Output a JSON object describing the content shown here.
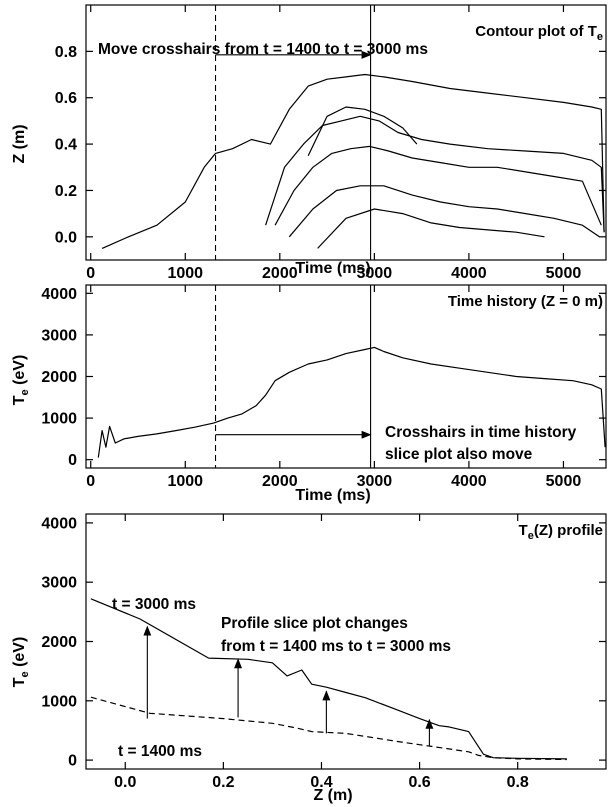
{
  "chart_data": [
    {
      "type": "line",
      "title": "Contour plot of T",
      "title_sub": "e",
      "xlabel": "Time (ms)",
      "ylabel": "Z (m)",
      "xlim": [
        -50,
        5450
      ],
      "ylim": [
        -0.1,
        1.0
      ],
      "x_ticks": [
        {
          "value": 0,
          "label": "0"
        },
        {
          "value": 1000,
          "label": "1000"
        },
        {
          "value": 2000,
          "label": "2000"
        },
        {
          "value": 3000,
          "label": "3000"
        },
        {
          "value": 4000,
          "label": "4000"
        },
        {
          "value": 5000,
          "label": "5000"
        }
      ],
      "y_ticks": [
        {
          "value": 0.0,
          "label": "0.0"
        },
        {
          "value": 0.2,
          "label": "0.2"
        },
        {
          "value": 0.4,
          "label": "0.4"
        },
        {
          "value": 0.6,
          "label": "0.6"
        },
        {
          "value": 0.8,
          "label": "0.8"
        }
      ],
      "grid": false,
      "series": [
        {
          "x": [
            120,
            400,
            700,
            1000,
            1200,
            1320,
            1500,
            1700,
            1900,
            2100,
            2300,
            2500,
            2700,
            2900,
            3100,
            3400,
            3800,
            4200,
            4600,
            5000,
            5300,
            5400,
            5430
          ],
          "values": [
            -0.05,
            0.0,
            0.05,
            0.15,
            0.3,
            0.36,
            0.38,
            0.42,
            0.4,
            0.55,
            0.65,
            0.68,
            0.69,
            0.7,
            0.69,
            0.67,
            0.64,
            0.62,
            0.6,
            0.58,
            0.56,
            0.55,
            0.02
          ]
        },
        {
          "x": [
            1850,
            2050,
            2250,
            2450,
            2650,
            2850,
            3050,
            3250,
            3500,
            3800,
            4200,
            4600,
            5000,
            5300,
            5400,
            5430
          ],
          "values": [
            0.05,
            0.3,
            0.4,
            0.48,
            0.5,
            0.52,
            0.5,
            0.45,
            0.42,
            0.4,
            0.38,
            0.37,
            0.36,
            0.33,
            0.3,
            0.02
          ]
        },
        {
          "x": [
            2300,
            2500,
            2700,
            2900,
            3100,
            3300,
            3450
          ],
          "values": [
            0.35,
            0.52,
            0.56,
            0.55,
            0.52,
            0.47,
            0.4
          ]
        },
        {
          "x": [
            1950,
            2150,
            2350,
            2550,
            2750,
            2950,
            3150,
            3400,
            3700,
            4000,
            4300,
            4600,
            4900,
            5200,
            5400
          ],
          "values": [
            0.05,
            0.2,
            0.3,
            0.36,
            0.38,
            0.39,
            0.37,
            0.34,
            0.32,
            0.3,
            0.3,
            0.28,
            0.26,
            0.24,
            0.05
          ]
        },
        {
          "x": [
            2100,
            2350,
            2600,
            2850,
            3100,
            3400,
            3700,
            4000,
            4300,
            4600,
            4900,
            5200,
            5380
          ],
          "values": [
            0.0,
            0.12,
            0.2,
            0.22,
            0.22,
            0.18,
            0.15,
            0.13,
            0.12,
            0.1,
            0.08,
            0.05,
            0.0
          ]
        },
        {
          "x": [
            2400,
            2700,
            3000,
            3300,
            3600,
            3900,
            4200,
            4500,
            4800
          ],
          "values": [
            -0.05,
            0.08,
            0.12,
            0.1,
            0.06,
            0.04,
            0.03,
            0.02,
            0.0
          ]
        }
      ],
      "vertical_lines": [
        {
          "x": 1320,
          "style": "dashed"
        },
        {
          "x": 2960,
          "style": "solid"
        }
      ],
      "annotations": [
        {
          "text": "Move crosshairs from t = 1400 to t = 3000 ms"
        }
      ],
      "arrows": [
        {
          "from": [
            1320,
            0.785
          ],
          "to": [
            2960,
            0.785
          ]
        }
      ]
    },
    {
      "type": "line",
      "title": "Time history (Z = 0 m)",
      "xlabel": "Time (ms)",
      "ylabel": "T",
      "ylabel_sub": "e",
      "ylabel_tail": " (eV)",
      "xlim": [
        -50,
        5450
      ],
      "ylim": [
        -200,
        4200
      ],
      "x_ticks": [
        {
          "value": 0,
          "label": "0"
        },
        {
          "value": 1000,
          "label": "1000"
        },
        {
          "value": 2000,
          "label": "2000"
        },
        {
          "value": 3000,
          "label": "3000"
        },
        {
          "value": 4000,
          "label": "4000"
        },
        {
          "value": 5000,
          "label": "5000"
        }
      ],
      "y_ticks": [
        {
          "value": 0,
          "label": "0"
        },
        {
          "value": 1000,
          "label": "1000"
        },
        {
          "value": 2000,
          "label": "2000"
        },
        {
          "value": 3000,
          "label": "3000"
        },
        {
          "value": 4000,
          "label": "4000"
        }
      ],
      "grid": false,
      "series": [
        {
          "x": [
            80,
            120,
            160,
            200,
            260,
            350,
            500,
            700,
            900,
            1100,
            1300,
            1450,
            1600,
            1750,
            1850,
            1950,
            2100,
            2300,
            2500,
            2700,
            2900,
            3000,
            3100,
            3300,
            3600,
            3900,
            4200,
            4500,
            4800,
            5100,
            5300,
            5400,
            5440
          ],
          "values": [
            50,
            700,
            300,
            800,
            400,
            500,
            560,
            620,
            700,
            780,
            880,
            1000,
            1100,
            1300,
            1550,
            1900,
            2100,
            2300,
            2400,
            2550,
            2650,
            2700,
            2600,
            2450,
            2300,
            2200,
            2100,
            2000,
            1950,
            1900,
            1800,
            1700,
            300
          ]
        }
      ],
      "vertical_lines": [
        {
          "x": 1320,
          "style": "dashed"
        },
        {
          "x": 2960,
          "style": "solid"
        }
      ],
      "annotations": [
        {
          "text": "Crosshairs in time history"
        },
        {
          "text": "slice plot also move"
        }
      ],
      "arrows": [
        {
          "from": [
            1320,
            600
          ],
          "to": [
            2960,
            600
          ]
        }
      ]
    },
    {
      "type": "line",
      "title": "T",
      "title_sub": "e",
      "title_tail": "(Z) profile",
      "xlabel": "Z (m)",
      "ylabel": "T",
      "ylabel_sub": "e",
      "ylabel_tail": " (eV)",
      "xlim": [
        -0.08,
        0.98
      ],
      "ylim": [
        -150,
        4150
      ],
      "x_ticks": [
        {
          "value": 0.0,
          "label": "0.0"
        },
        {
          "value": 0.2,
          "label": "0.2"
        },
        {
          "value": 0.4,
          "label": "0.4"
        },
        {
          "value": 0.6,
          "label": "0.6"
        },
        {
          "value": 0.8,
          "label": "0.8"
        }
      ],
      "y_ticks": [
        {
          "value": 0,
          "label": "0"
        },
        {
          "value": 1000,
          "label": "1000"
        },
        {
          "value": 2000,
          "label": "2000"
        },
        {
          "value": 3000,
          "label": "3000"
        },
        {
          "value": 4000,
          "label": "4000"
        }
      ],
      "grid": false,
      "series": [
        {
          "name": "t = 3000 ms",
          "style": "solid",
          "x": [
            -0.07,
            0.03,
            0.17,
            0.25,
            0.3,
            0.33,
            0.36,
            0.38,
            0.41,
            0.45,
            0.49,
            0.55,
            0.6,
            0.64,
            0.66,
            0.7,
            0.73,
            0.75,
            0.8,
            0.9
          ],
          "values": [
            2720,
            2380,
            1720,
            1700,
            1640,
            1420,
            1520,
            1280,
            1230,
            1140,
            1050,
            860,
            700,
            580,
            560,
            480,
            100,
            40,
            30,
            20
          ]
        },
        {
          "name": "t = 1400 ms",
          "style": "dashed",
          "x": [
            -0.07,
            0.05,
            0.2,
            0.3,
            0.35,
            0.38,
            0.45,
            0.55,
            0.6,
            0.65,
            0.7,
            0.72,
            0.75,
            0.8,
            0.9
          ],
          "values": [
            1060,
            790,
            700,
            620,
            540,
            480,
            450,
            320,
            260,
            200,
            140,
            80,
            40,
            20,
            10
          ]
        }
      ],
      "annotations": [
        {
          "text": "t = 3000 ms"
        },
        {
          "text": "t = 1400 ms"
        },
        {
          "text": "Profile slice plot changes"
        },
        {
          "text": "from t = 1400 ms to t = 3000 ms"
        }
      ],
      "arrows": [
        {
          "from": [
            0.045,
            700
          ],
          "to": [
            0.045,
            2250
          ]
        },
        {
          "from": [
            0.23,
            720
          ],
          "to": [
            0.23,
            1700
          ]
        },
        {
          "from": [
            0.41,
            450
          ],
          "to": [
            0.41,
            1160
          ]
        },
        {
          "from": [
            0.62,
            230
          ],
          "to": [
            0.62,
            680
          ]
        }
      ]
    }
  ]
}
